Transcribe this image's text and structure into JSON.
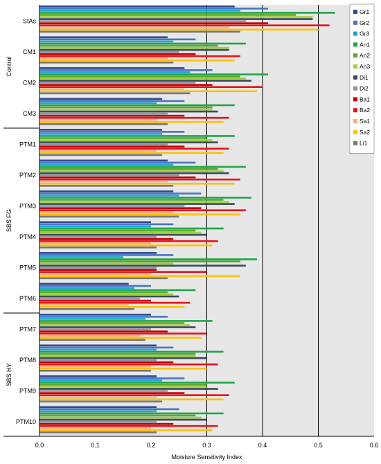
{
  "chart_data": {
    "type": "bar",
    "orientation": "horizontal",
    "xlabel": "Moisture Sensitivity Index",
    "xlim": [
      0,
      0.6
    ],
    "xticks": [
      "0.0",
      "0.1",
      "0.2",
      "0.3",
      "0.4",
      "0.5",
      "0.6"
    ],
    "grid": "vertical lines at 0.3, 0.4, 0.5",
    "legend_position": "top-right",
    "plot_background": "#e7e7e7",
    "groups": [
      {
        "label": "Control",
        "categories": [
          "StAs",
          "CM1",
          "CM2",
          "CM3"
        ]
      },
      {
        "label": "SBS FG",
        "categories": [
          "PTM1",
          "PTM2",
          "PTM3",
          "PTM4",
          "PTM5",
          "PTM6"
        ]
      },
      {
        "label": "SBS HY",
        "categories": [
          "PTM7",
          "PTM8",
          "PTM9",
          "PTM10"
        ]
      }
    ],
    "categories": [
      "StAs",
      "CM1",
      "CM2",
      "CM3",
      "PTM1",
      "PTM2",
      "PTM3",
      "PTM4",
      "PTM5",
      "PTM6",
      "PTM7",
      "PTM8",
      "PTM9",
      "PTM10"
    ],
    "series": [
      {
        "name": "Gr1",
        "color": "#2e4a8c",
        "values": [
          0.35,
          0.23,
          0.26,
          0.22,
          0.22,
          0.23,
          0.24,
          0.2,
          0.21,
          0.16,
          0.2,
          0.21,
          0.21,
          0.21
        ]
      },
      {
        "name": "Gr2",
        "color": "#4b74c7",
        "values": [
          0.41,
          0.28,
          0.31,
          0.26,
          0.26,
          0.28,
          0.29,
          0.24,
          0.24,
          0.2,
          0.23,
          0.24,
          0.26,
          0.25
        ]
      },
      {
        "name": "Gr3",
        "color": "#1aa7d6",
        "values": [
          0.36,
          0.24,
          0.27,
          0.21,
          0.22,
          0.24,
          0.25,
          0.2,
          0.15,
          0.17,
          0.19,
          0.21,
          0.22,
          0.21
        ]
      },
      {
        "name": "An1",
        "color": "#1fa64a",
        "values": [
          0.53,
          0.37,
          0.41,
          0.35,
          0.35,
          0.37,
          0.38,
          0.33,
          0.39,
          0.28,
          0.31,
          0.33,
          0.35,
          0.33
        ]
      },
      {
        "name": "An2",
        "color": "#5aa532",
        "values": [
          0.46,
          0.32,
          0.36,
          0.31,
          0.3,
          0.32,
          0.33,
          0.28,
          0.36,
          0.23,
          0.26,
          0.28,
          0.3,
          0.28
        ]
      },
      {
        "name": "An3",
        "color": "#9dcf3a",
        "values": [
          0.49,
          0.34,
          0.37,
          0.31,
          0.31,
          0.33,
          0.34,
          0.29,
          0.24,
          0.24,
          0.27,
          0.28,
          0.3,
          0.29
        ]
      },
      {
        "name": "Di1",
        "color": "#3a4a5c",
        "values": [
          0.49,
          0.34,
          0.38,
          0.32,
          0.32,
          0.34,
          0.35,
          0.3,
          0.37,
          0.25,
          0.28,
          0.3,
          0.32,
          0.3
        ]
      },
      {
        "name": "Di2",
        "color": "#8c95a0",
        "values": [
          0.37,
          0.25,
          0.28,
          0.23,
          0.23,
          0.25,
          0.26,
          0.21,
          0.21,
          0.18,
          0.2,
          0.21,
          0.23,
          0.21
        ]
      },
      {
        "name": "Ba1",
        "color": "#c00000",
        "values": [
          0.41,
          0.28,
          0.31,
          0.26,
          0.26,
          0.28,
          0.29,
          0.24,
          0.21,
          0.2,
          0.23,
          0.24,
          0.26,
          0.24
        ]
      },
      {
        "name": "Ba2",
        "color": "#e8131b",
        "values": [
          0.52,
          0.36,
          0.4,
          0.34,
          0.34,
          0.36,
          0.37,
          0.32,
          0.3,
          0.27,
          0.3,
          0.32,
          0.34,
          0.32
        ]
      },
      {
        "name": "Sa1",
        "color": "#f4b183",
        "values": [
          0.34,
          0.23,
          0.26,
          0.21,
          0.21,
          0.23,
          0.24,
          0.2,
          0.2,
          0.16,
          0.18,
          0.2,
          0.21,
          0.2
        ]
      },
      {
        "name": "Sa2",
        "color": "#ffc000",
        "values": [
          0.5,
          0.35,
          0.39,
          0.33,
          0.33,
          0.35,
          0.36,
          0.31,
          0.36,
          0.26,
          0.29,
          0.3,
          0.33,
          0.31
        ]
      },
      {
        "name": "Li1",
        "color": "#767676",
        "values": [
          0.36,
          0.24,
          0.27,
          0.23,
          0.22,
          0.24,
          0.25,
          0.21,
          0.23,
          0.17,
          0.19,
          0.2,
          0.22,
          0.21
        ]
      }
    ]
  }
}
